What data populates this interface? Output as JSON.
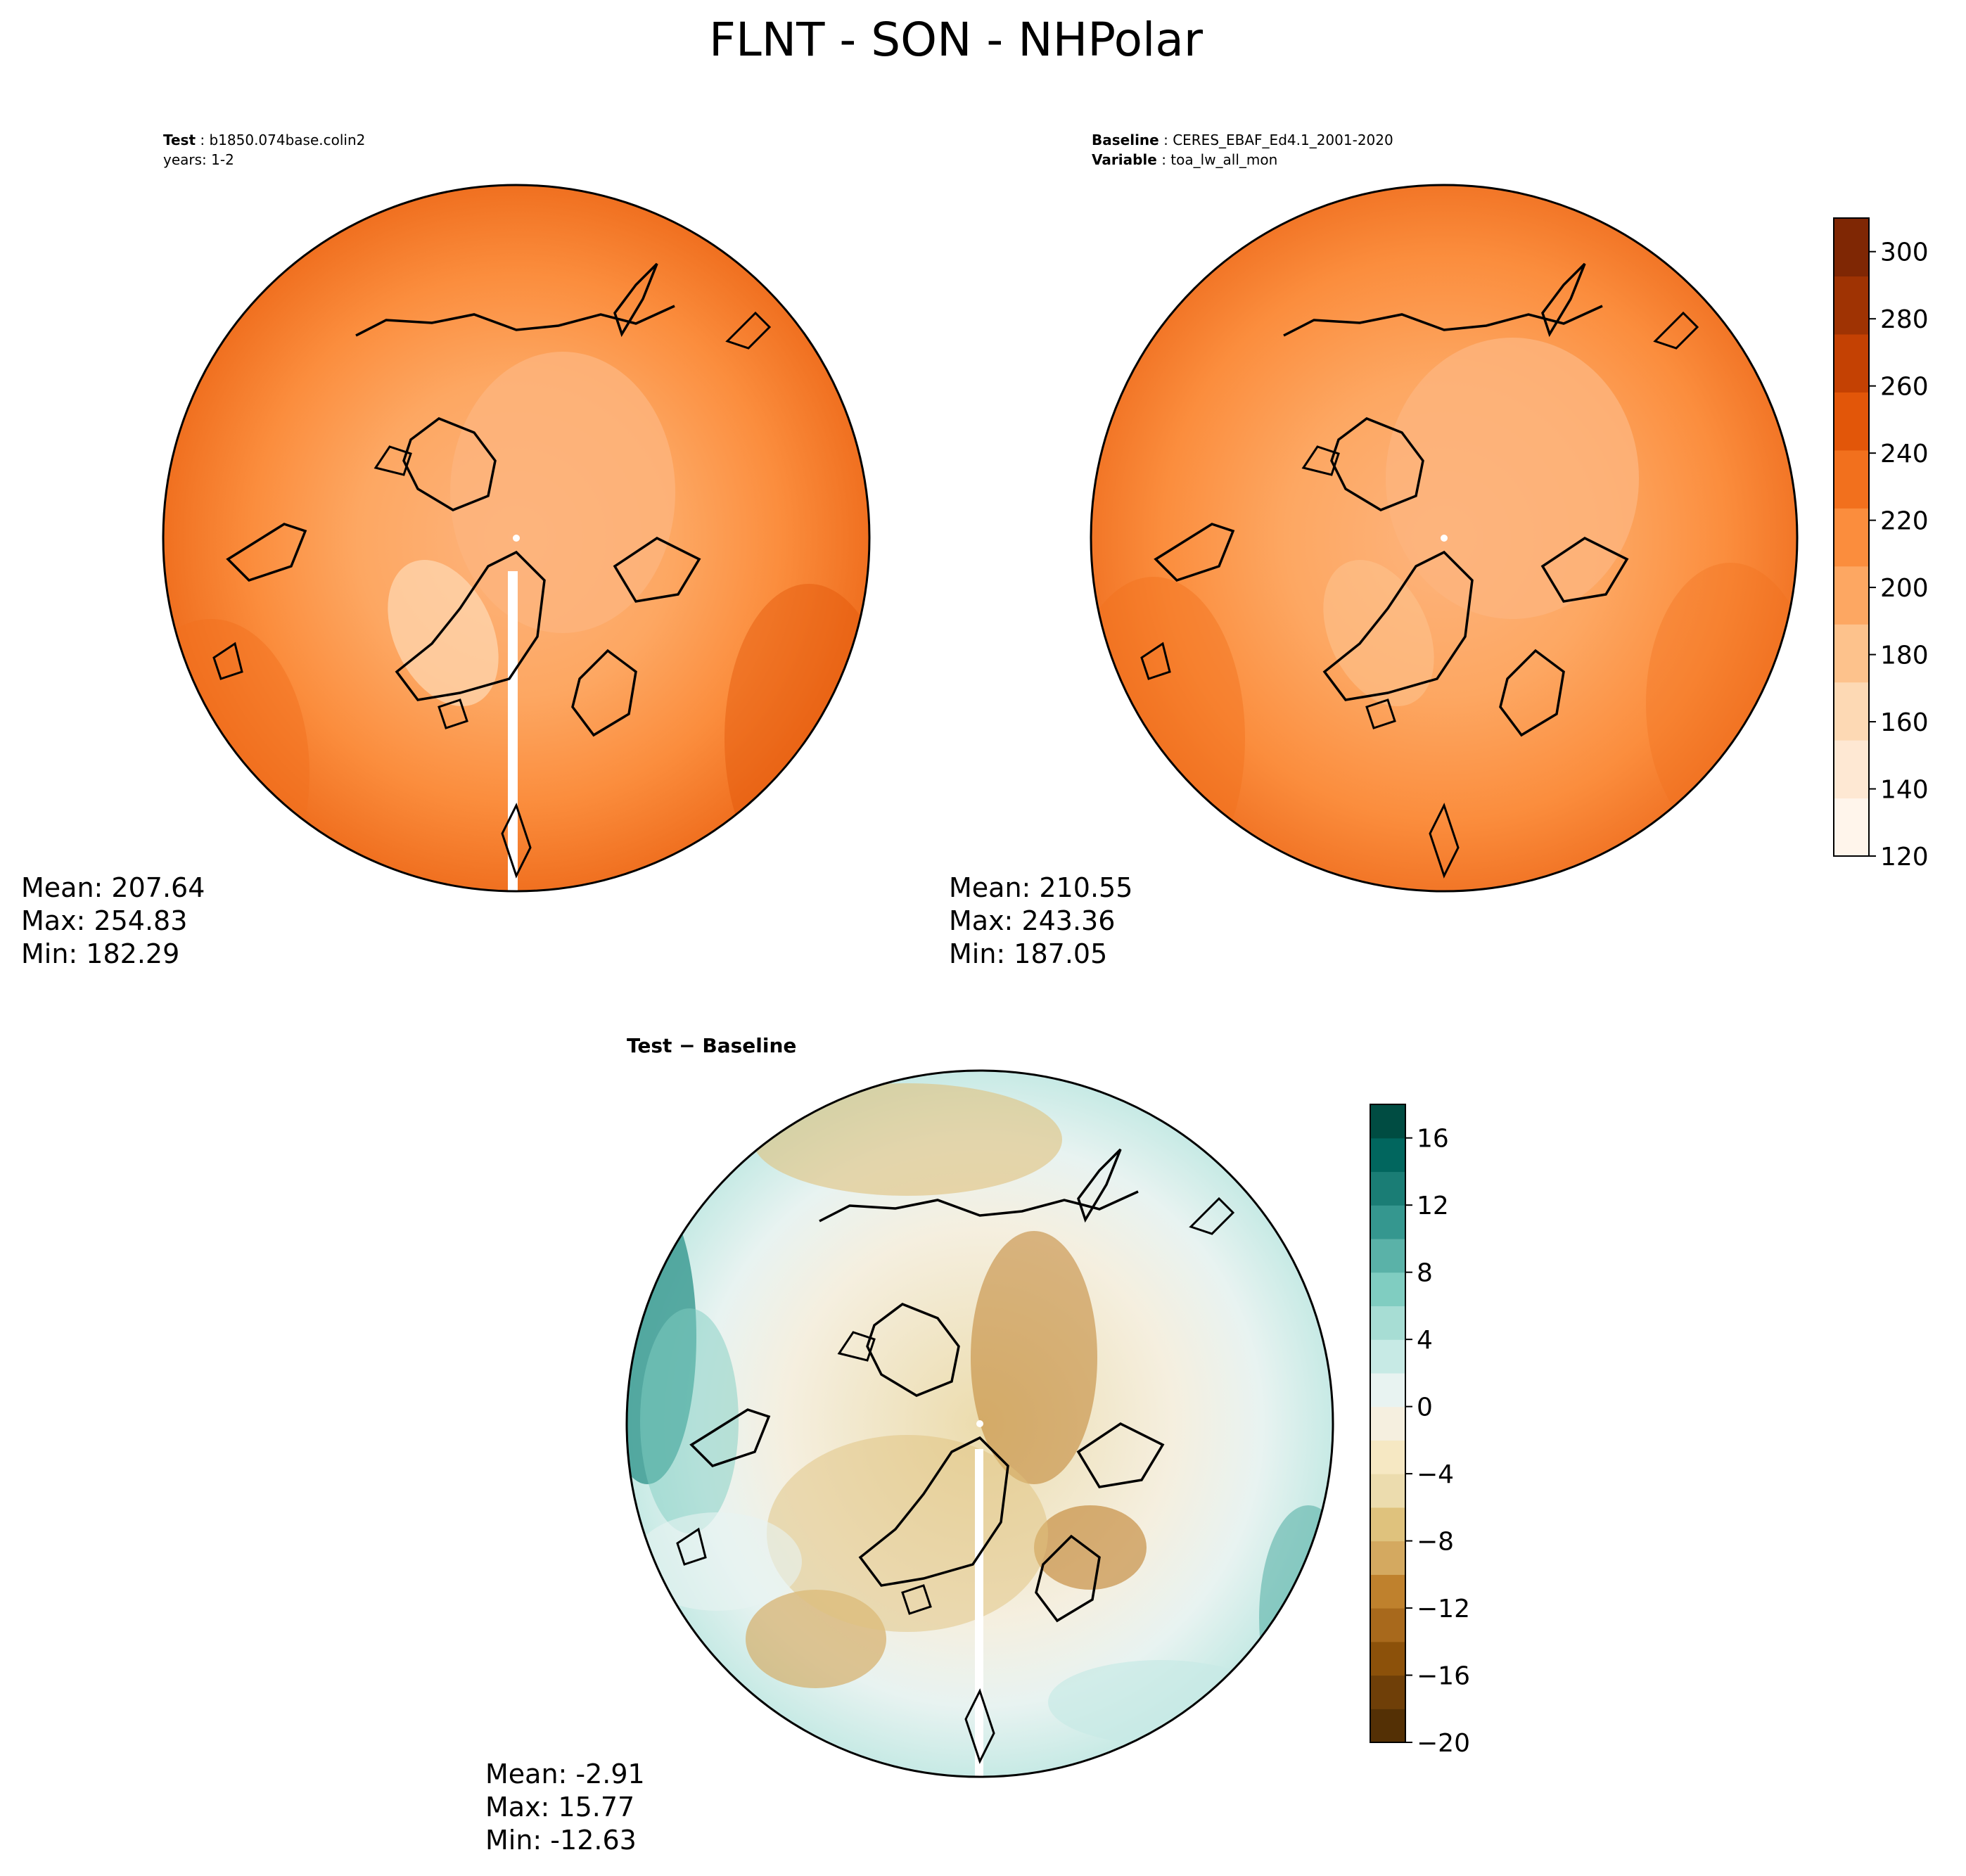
{
  "title": "FLNT - SON - NHPolar",
  "panels": {
    "test": {
      "header_label": "Test",
      "header_value": "b1850.074base.colin2",
      "years": "years: 1-2",
      "stats": {
        "mean": "Mean: 207.64",
        "max": "Max: 254.83",
        "min": "Min: 182.29"
      }
    },
    "baseline": {
      "header_label": "Baseline",
      "header_value": "CERES_EBAF_Ed4.1_2001-2020",
      "variable_label": "Variable",
      "variable_value": "toa_lw_all_mon",
      "stats": {
        "mean": "Mean: 210.55",
        "max": "Max: 243.36",
        "min": "Min: 187.05"
      }
    },
    "diff": {
      "title": "Test − Baseline",
      "stats": {
        "mean": "Mean: -2.91",
        "max": "Max: 15.77",
        "min": "Min: -12.63"
      }
    }
  },
  "colorbars": {
    "main": {
      "ticks": [
        "120",
        "140",
        "160",
        "180",
        "200",
        "220",
        "240",
        "260",
        "280",
        "300"
      ],
      "range": [
        120,
        310
      ],
      "colors": [
        "#fff5eb",
        "#fee8d3",
        "#fdd9b4",
        "#fdc28c",
        "#fda762",
        "#fb8d3d",
        "#f2701d",
        "#e25609",
        "#c44103",
        "#9f3303",
        "#7f2704"
      ]
    },
    "diff": {
      "ticks": [
        "−20",
        "−16",
        "−12",
        "−8",
        "−4",
        "0",
        "4",
        "8",
        "12",
        "16"
      ],
      "range": [
        -20,
        18
      ],
      "colors": [
        "#543005",
        "#6f3f08",
        "#8c510a",
        "#a8691c",
        "#bf812d",
        "#d4a960",
        "#dfc27d",
        "#ecdcae",
        "#f6e8c3",
        "#f5efdf",
        "#e8f3f1",
        "#c7eae5",
        "#a7ddd4",
        "#80cdc1",
        "#5ab2a8",
        "#35978f",
        "#1a7d75",
        "#01665e",
        "#004c42"
      ]
    }
  }
}
